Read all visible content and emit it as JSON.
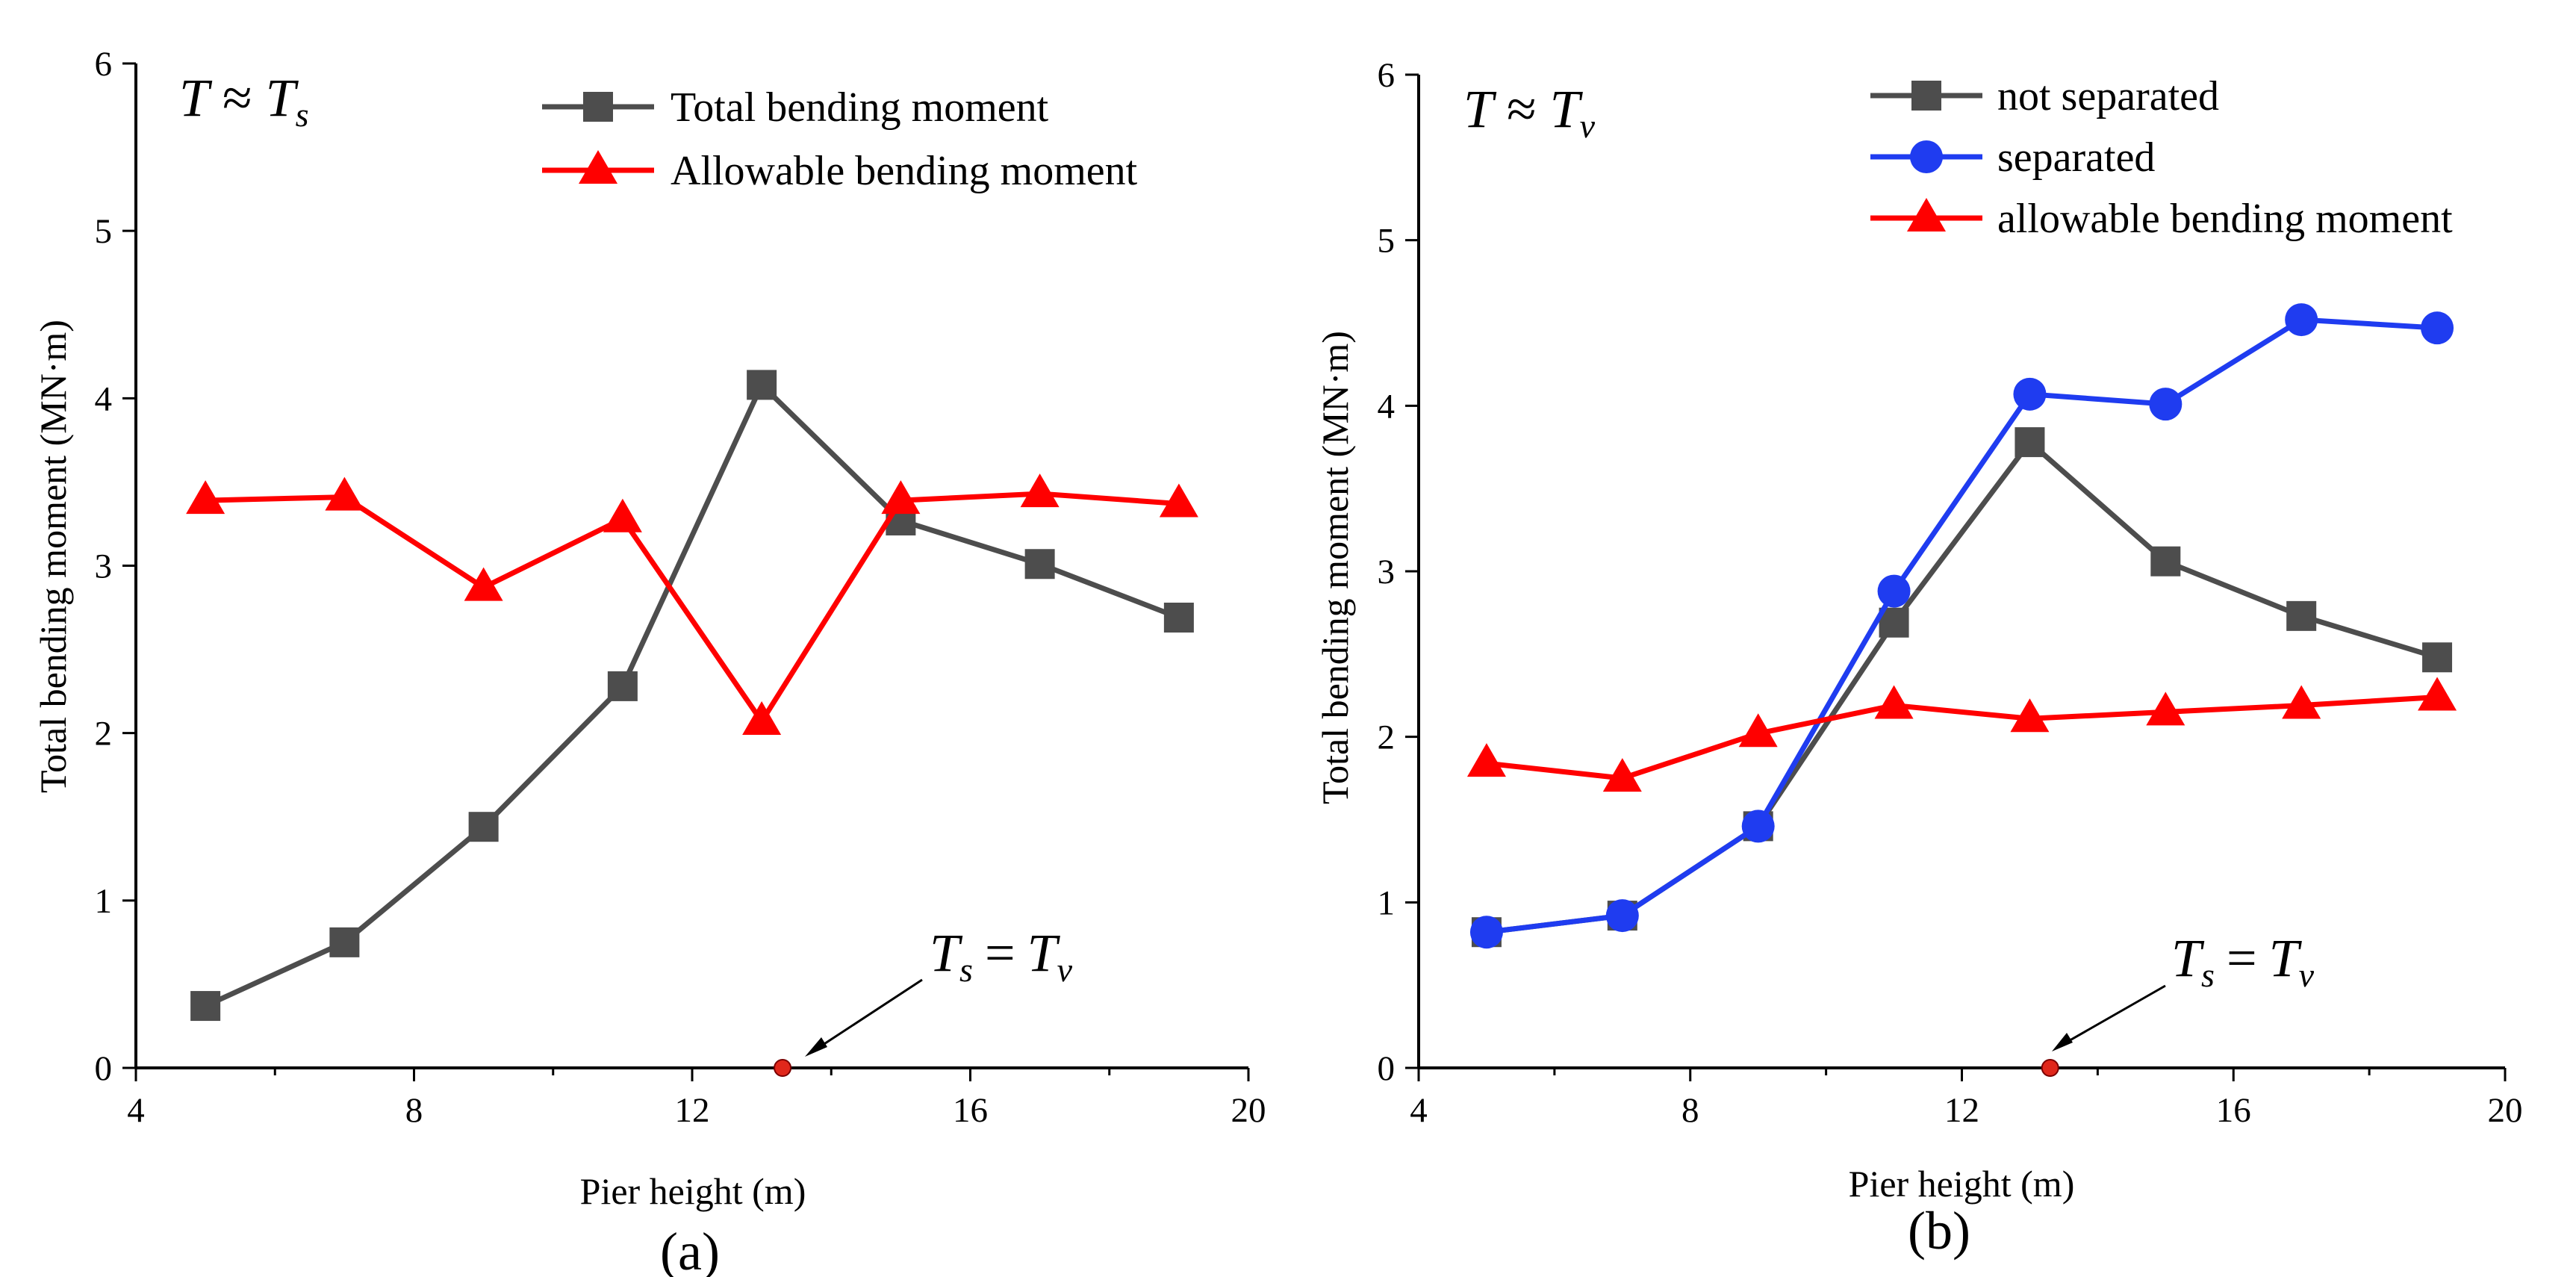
{
  "figure": {
    "panel_labels": [
      "(a)",
      "(b)"
    ]
  },
  "chart_data": [
    {
      "type": "line",
      "panel": "(a)",
      "condition_label": "T ≈ T_s",
      "xlabel": "Pier height (m)",
      "ylabel": "Total bending moment (MN·m)",
      "xlim": [
        4,
        20
      ],
      "ylim": [
        0,
        6
      ],
      "xticks": [
        4,
        8,
        12,
        16,
        20
      ],
      "yticks": [
        0,
        1,
        2,
        3,
        4,
        5,
        6
      ],
      "grid": false,
      "legend_position": "top-right",
      "x": [
        5,
        7,
        9,
        11,
        13,
        15,
        17,
        19
      ],
      "series": [
        {
          "name": "Total bending moment",
          "color": "#4d4d4d",
          "marker": "square",
          "values": [
            0.37,
            0.75,
            1.44,
            2.28,
            4.08,
            3.27,
            3.01,
            2.69
          ]
        },
        {
          "name": "Allowable bending moment",
          "color": "#ff0000",
          "marker": "triangle",
          "values": [
            3.39,
            3.41,
            2.87,
            3.28,
            2.07,
            3.39,
            3.43,
            3.37
          ]
        }
      ],
      "annotations": [
        {
          "text": "T_s = T_v",
          "x": 13.3,
          "y": 0,
          "marker_color": "#e0271b"
        }
      ]
    },
    {
      "type": "line",
      "panel": "(b)",
      "condition_label": "T ≈ T_v",
      "xlabel": "Pier height (m)",
      "ylabel": "Total bending moment (MN·m)",
      "xlim": [
        4,
        20
      ],
      "ylim": [
        0,
        6
      ],
      "xticks": [
        4,
        8,
        12,
        16,
        20
      ],
      "yticks": [
        0,
        1,
        2,
        3,
        4,
        5,
        6
      ],
      "grid": false,
      "legend_position": "top-right",
      "x": [
        5,
        7,
        9,
        11,
        13,
        15,
        17,
        19
      ],
      "series": [
        {
          "name": "not separated",
          "color": "#4d4d4d",
          "marker": "square",
          "values": [
            0.82,
            0.92,
            1.46,
            2.69,
            3.78,
            3.06,
            2.73,
            2.48
          ]
        },
        {
          "name": "separated",
          "color": "#1f3cf0",
          "marker": "circle",
          "values": [
            0.82,
            0.92,
            1.46,
            2.88,
            4.07,
            4.01,
            4.52,
            4.47
          ]
        },
        {
          "name": "allowable bending moment",
          "color": "#ff0000",
          "marker": "triangle",
          "values": [
            1.84,
            1.75,
            2.02,
            2.19,
            2.11,
            2.15,
            2.19,
            2.24
          ]
        }
      ],
      "annotations": [
        {
          "text": "T_s = T_v",
          "x": 13.3,
          "y": 0,
          "marker_color": "#e0271b"
        }
      ]
    }
  ]
}
